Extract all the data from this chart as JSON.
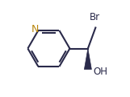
{
  "bg_color": "#ffffff",
  "line_color": "#2a2a4a",
  "N_color": "#b8860b",
  "label_color": "#2a2a4a",
  "Br_label": "Br",
  "N_label": "N",
  "OH_label": "OH",
  "wedge_color": "#2a2a4a",
  "figsize": [
    1.61,
    1.21
  ],
  "dpi": 100
}
